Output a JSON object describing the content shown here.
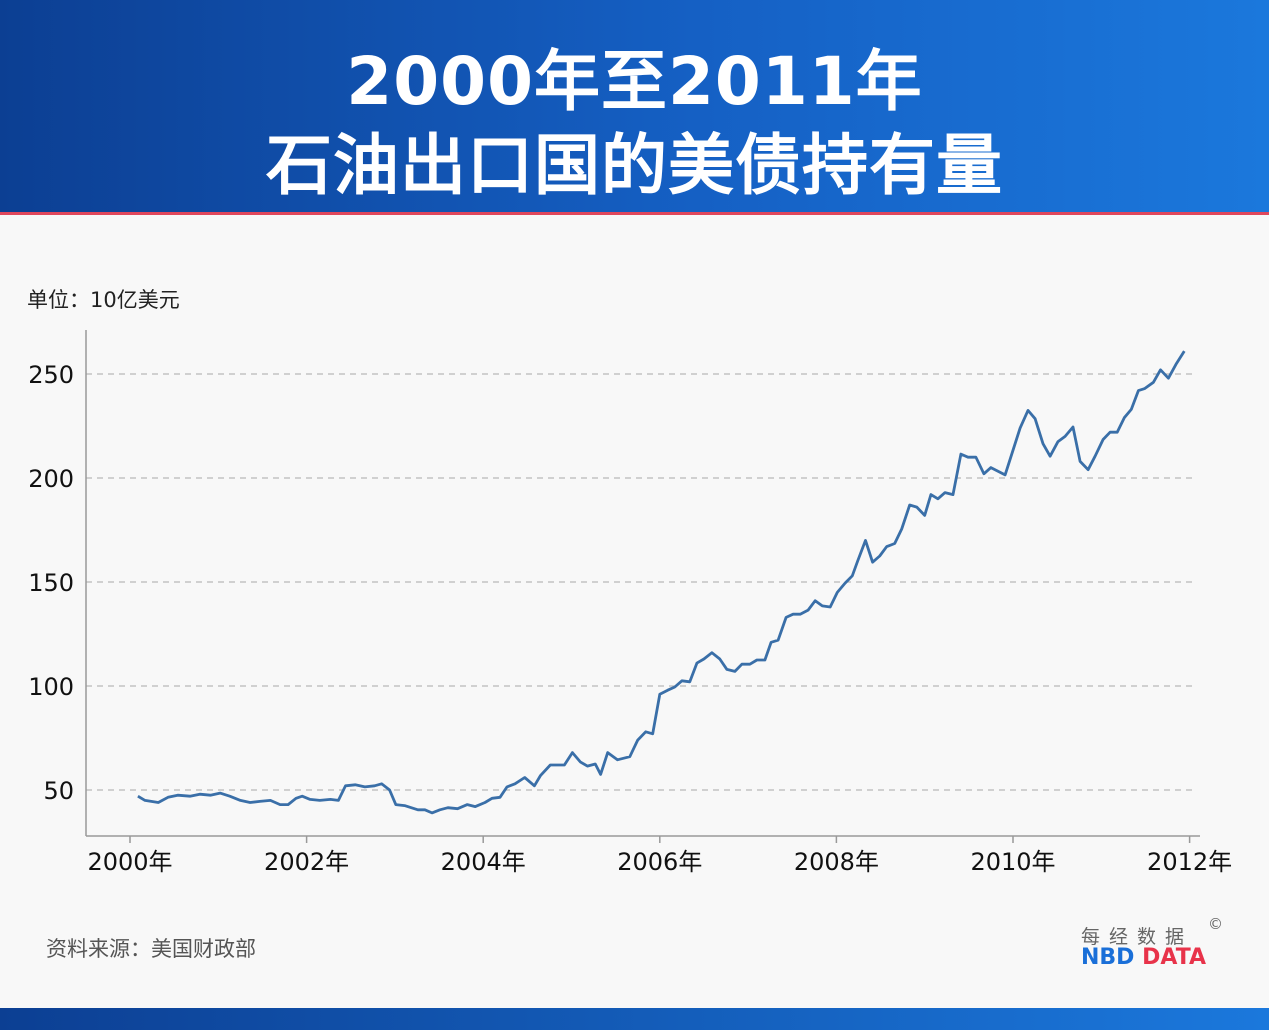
{
  "header": {
    "title_line1": "2000年至2011年",
    "title_line2": "石油出口国的美债持有量"
  },
  "unit_label": "单位：10亿美元",
  "source": "资料来源：美国财政部",
  "logo": {
    "cn": "每经数据",
    "copyright": "©",
    "en_part1": "NBD",
    "en_part2": "DATA"
  },
  "colors": {
    "line": "#3a6fa8",
    "header": "#1560c4",
    "accent_red": "#e0475c"
  },
  "chart_data": {
    "type": "line",
    "title": "2000年至2011年石油出口国的美债持有量",
    "ylabel": "单位：10亿美元",
    "xlabel": "",
    "xlim": [
      2000,
      2012
    ],
    "ylim": [
      30,
      270
    ],
    "yticks": [
      50,
      100,
      150,
      200,
      250
    ],
    "xticks": [
      2000,
      2002,
      2004,
      2006,
      2008,
      2010,
      2012
    ],
    "xtick_labels": [
      "2000年",
      "2002年",
      "2004年",
      "2006年",
      "2008年",
      "2010年",
      "2012年"
    ],
    "ytick_labels": [
      "50",
      "100",
      "150",
      "200",
      "250"
    ],
    "grid": "horizontal dashed",
    "x": [
      2000.09,
      2000.17,
      2000.32,
      2000.43,
      2000.54,
      2000.68,
      2000.79,
      2000.91,
      2001.02,
      2001.13,
      2001.25,
      2001.36,
      2001.47,
      2001.59,
      2001.7,
      2001.79,
      2001.88,
      2001.95,
      2002.04,
      2002.15,
      2002.27,
      2002.36,
      2002.44,
      2002.55,
      2002.66,
      2002.77,
      2002.85,
      2002.94,
      2003.01,
      2003.11,
      2003.26,
      2003.34,
      2003.42,
      2003.51,
      2003.6,
      2003.71,
      2003.82,
      2003.91,
      2004.02,
      2004.1,
      2004.19,
      2004.27,
      2004.36,
      2004.47,
      2004.58,
      2004.65,
      2004.76,
      2004.84,
      2004.92,
      2005.01,
      2005.1,
      2005.18,
      2005.27,
      2005.33,
      2005.41,
      2005.52,
      2005.66,
      2005.75,
      2005.84,
      2005.92,
      2006.0,
      2006.09,
      2006.17,
      2006.25,
      2006.34,
      2006.42,
      2006.5,
      2006.59,
      2006.68,
      2006.76,
      2006.85,
      2006.93,
      2007.02,
      2007.1,
      2007.19,
      2007.26,
      2007.34,
      2007.43,
      2007.51,
      2007.59,
      2007.68,
      2007.76,
      2007.84,
      2007.93,
      2008.01,
      2008.1,
      2008.18,
      2008.24,
      2008.33,
      2008.41,
      2008.49,
      2008.57,
      2008.66,
      2008.74,
      2008.83,
      2008.91,
      2009.0,
      2009.07,
      2009.15,
      2009.23,
      2009.32,
      2009.41,
      2009.49,
      2009.58,
      2009.67,
      2009.75,
      2009.91,
      2010.08,
      2010.17,
      2010.25,
      2010.34,
      2010.42,
      2010.51,
      2010.59,
      2010.68,
      2010.76,
      2010.85,
      2010.93,
      2011.02,
      2011.1,
      2011.18,
      2011.26,
      2011.34,
      2011.42,
      2011.49,
      2011.59,
      2011.67,
      2011.76,
      2011.85,
      2011.94
    ],
    "values": [
      47,
      45,
      44,
      46.5,
      47.5,
      47,
      48,
      47.5,
      48.5,
      47,
      45,
      44,
      44.5,
      45,
      43,
      43,
      46,
      47,
      45.5,
      45,
      45.5,
      45,
      52,
      52.5,
      51.5,
      52,
      53,
      50,
      43,
      42.5,
      40.5,
      40.5,
      39,
      40.5,
      41.5,
      41,
      43,
      42,
      44,
      46,
      46.5,
      51.5,
      53,
      56,
      52,
      57,
      62,
      62,
      62,
      68,
      63.5,
      61.5,
      62.5,
      57.5,
      68,
      64.5,
      66,
      74,
      78,
      77,
      96,
      98,
      99.5,
      102.5,
      102,
      111,
      113,
      116,
      113,
      108,
      107,
      110.5,
      110.5,
      112.5,
      112.5,
      121,
      122,
      133,
      134.5,
      134.5,
      136.5,
      141,
      138.5,
      138,
      145,
      149.5,
      153,
      160,
      170,
      159.5,
      162.5,
      167,
      168.5,
      175.5,
      187,
      186,
      182,
      192,
      190,
      193,
      192,
      211.5,
      210,
      210,
      202,
      205,
      201.5,
      224,
      232.5,
      228.5,
      216.5,
      210.5,
      217.5,
      220,
      224.5,
      208,
      204,
      210.5,
      218.5,
      222,
      222,
      229,
      233,
      242,
      243,
      246,
      252,
      248,
      255,
      261
    ]
  }
}
